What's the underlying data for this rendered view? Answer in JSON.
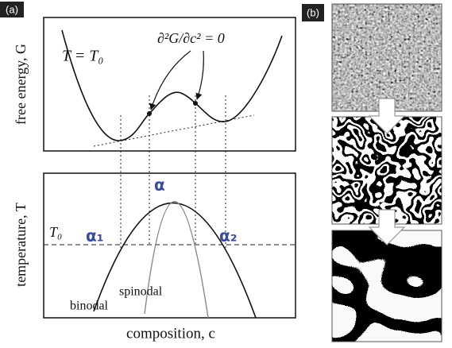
{
  "panel_a": {
    "label": "(a)",
    "free_energy": {
      "axis_label": "free energy, G",
      "condition": "T = T₀",
      "inflection_label": "∂²G/∂c² = 0"
    },
    "phase_diagram": {
      "axis_label": "temperature, T",
      "temperature_label": "T₀",
      "phase_labels": [
        "α",
        "α₁",
        "α₂"
      ],
      "binodal_label": "binodal",
      "spinodal_label": "spinodal",
      "x_axis_label": "composition, c"
    }
  },
  "panel_b": {
    "label": "(b)"
  }
}
